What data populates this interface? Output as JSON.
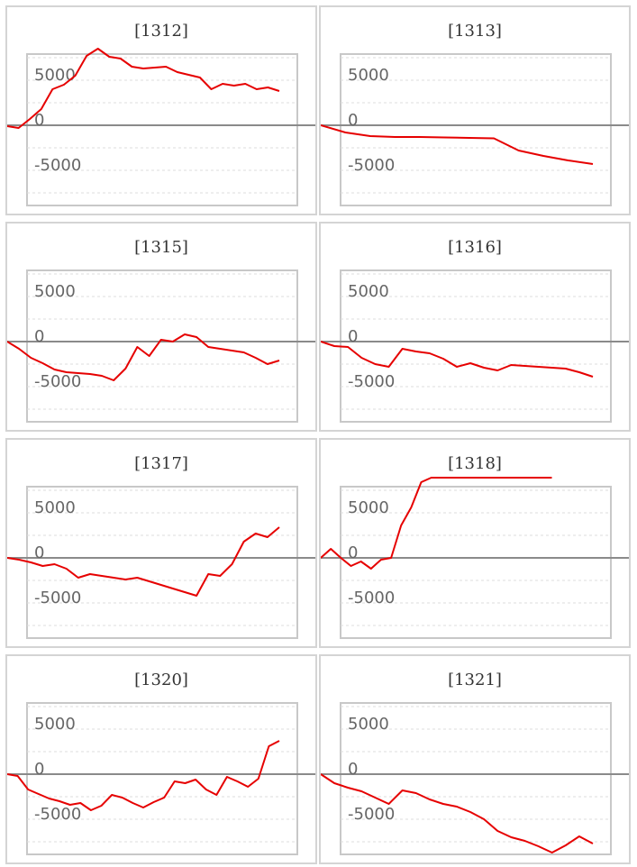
{
  "chart_data": [
    {
      "type": "line",
      "title": "[1312]",
      "yticks": [
        5000,
        0,
        -5000
      ],
      "ylim": [
        -8900,
        7900
      ],
      "color": "#e60000",
      "series": [
        {
          "values": [
            -100,
            -300,
            700,
            1800,
            4000,
            4500,
            5500,
            7700,
            8500,
            7600,
            7400,
            6500,
            6300,
            6400,
            6500,
            5900,
            5600,
            5300,
            4000,
            4600,
            4400,
            4600,
            4000,
            4200,
            3800
          ]
        }
      ]
    },
    {
      "type": "line",
      "title": "[1313]",
      "yticks": [
        5000,
        0,
        -5000
      ],
      "ylim": [
        -8900,
        7900
      ],
      "color": "#e60000",
      "series": [
        {
          "values": [
            0,
            -800,
            -1200,
            -1300,
            -1300,
            -1350,
            -1400,
            -1450,
            -2800,
            -3400,
            -3900,
            -4300
          ]
        }
      ]
    },
    {
      "type": "line",
      "title": "[1315]",
      "yticks": [
        5000,
        0,
        -5000
      ],
      "ylim": [
        -8900,
        7900
      ],
      "color": "#e60000",
      "series": [
        {
          "values": [
            0,
            -800,
            -1800,
            -2400,
            -3100,
            -3400,
            -3500,
            -3600,
            -3800,
            -4300,
            -3000,
            -600,
            -1600,
            200,
            0,
            800,
            500,
            -600,
            -800,
            -1000,
            -1200,
            -1800,
            -2500,
            -2100
          ]
        }
      ]
    },
    {
      "type": "line",
      "title": "[1316]",
      "yticks": [
        5000,
        0,
        -5000
      ],
      "ylim": [
        -8900,
        7900
      ],
      "color": "#e60000",
      "series": [
        {
          "values": [
            0,
            -500,
            -600,
            -1800,
            -2500,
            -2800,
            -800,
            -1100,
            -1300,
            -1900,
            -2800,
            -2400,
            -2900,
            -3200,
            -2600,
            -2700,
            -2800,
            -2900,
            -3000,
            -3400,
            -3900
          ]
        }
      ]
    },
    {
      "type": "line",
      "title": "[1317]",
      "yticks": [
        5000,
        0,
        -5000
      ],
      "ylim": [
        -8900,
        7900
      ],
      "color": "#e60000",
      "series": [
        {
          "values": [
            0,
            -200,
            -500,
            -900,
            -700,
            -1200,
            -2200,
            -1800,
            -2000,
            -2200,
            -2400,
            -2200,
            -2600,
            -3000,
            -3400,
            -3800,
            -4200,
            -1800,
            -2000,
            -700,
            1800,
            2700,
            2300,
            3400
          ]
        }
      ]
    },
    {
      "type": "line",
      "title": "[1318]",
      "yticks": [
        5000,
        0,
        -5000
      ],
      "ylim": [
        -8900,
        7900
      ],
      "color": "#e60000",
      "series": [
        {
          "values": [
            0,
            1000,
            0,
            -900,
            -400,
            -1200,
            -200,
            0,
            3600,
            5600,
            8400,
            8900,
            8900,
            8900,
            8900,
            8900,
            8900,
            8900,
            8900,
            8900,
            8900,
            8900,
            8900,
            8900
          ]
        }
      ]
    },
    {
      "type": "line",
      "title": "[1320]",
      "yticks": [
        5000,
        0,
        -5000
      ],
      "ylim": [
        -8900,
        7900
      ],
      "color": "#e60000",
      "series": [
        {
          "values": [
            0,
            -200,
            -1700,
            -2200,
            -2700,
            -3000,
            -3400,
            -3200,
            -4000,
            -3500,
            -2300,
            -2600,
            -3200,
            -3700,
            -3100,
            -2600,
            -800,
            -1000,
            -600,
            -1700,
            -2300,
            -300,
            -800,
            -1400,
            -500,
            3100,
            3700
          ]
        }
      ]
    },
    {
      "type": "line",
      "title": "[1321]",
      "yticks": [
        5000,
        0,
        -5000
      ],
      "ylim": [
        -8900,
        7900
      ],
      "color": "#e60000",
      "series": [
        {
          "values": [
            0,
            -1000,
            -1500,
            -1900,
            -2600,
            -3300,
            -1800,
            -2100,
            -2800,
            -3300,
            -3600,
            -4200,
            -5000,
            -6300,
            -7000,
            -7400,
            -8000,
            -8700,
            -7900,
            -6900,
            -7700
          ]
        }
      ]
    }
  ]
}
